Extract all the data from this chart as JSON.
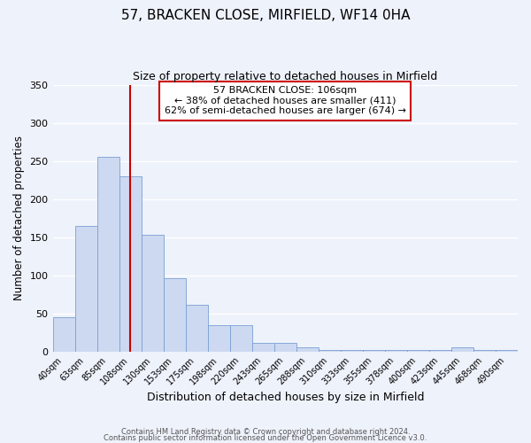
{
  "title": "57, BRACKEN CLOSE, MIRFIELD, WF14 0HA",
  "subtitle": "Size of property relative to detached houses in Mirfield",
  "xlabel": "Distribution of detached houses by size in Mirfield",
  "ylabel": "Number of detached properties",
  "bar_labels": [
    "40sqm",
    "63sqm",
    "85sqm",
    "108sqm",
    "130sqm",
    "153sqm",
    "175sqm",
    "198sqm",
    "220sqm",
    "243sqm",
    "265sqm",
    "288sqm",
    "310sqm",
    "333sqm",
    "355sqm",
    "378sqm",
    "400sqm",
    "423sqm",
    "445sqm",
    "468sqm",
    "490sqm"
  ],
  "bar_values": [
    45,
    165,
    255,
    230,
    153,
    96,
    61,
    35,
    35,
    11,
    11,
    6,
    2,
    2,
    2,
    2,
    2,
    2,
    5,
    2,
    2
  ],
  "bar_color": "#cdd9f0",
  "bar_edge_color": "#7a9fd4",
  "vline_x": 3,
  "vline_color": "#cc0000",
  "annotation_title": "57 BRACKEN CLOSE: 106sqm",
  "annotation_line1": "← 38% of detached houses are smaller (411)",
  "annotation_line2": "62% of semi-detached houses are larger (674) →",
  "annotation_box_color": "#cc0000",
  "ylim": [
    0,
    350
  ],
  "yticks": [
    0,
    50,
    100,
    150,
    200,
    250,
    300,
    350
  ],
  "footer1": "Contains HM Land Registry data © Crown copyright and database right 2024.",
  "footer2": "Contains public sector information licensed under the Open Government Licence v3.0.",
  "bg_color": "#eef2fb",
  "grid_color": "#ffffff"
}
